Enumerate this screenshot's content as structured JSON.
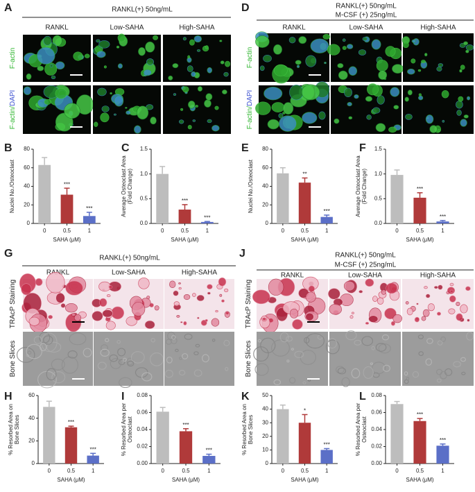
{
  "image_panels": [
    {
      "letter": "A",
      "header": [
        "RANKL(+) 50ng/mL"
      ],
      "columns": [
        "RANKL",
        "Low-SAHA",
        "High-SAHA"
      ],
      "rows": [
        [
          "F-actin"
        ],
        [
          "F-actin/",
          "DAPI"
        ]
      ]
    },
    {
      "letter": "D",
      "header": [
        "RANKL(+) 50ng/mL",
        "M-CSF (+) 25ng/mL"
      ],
      "columns": [
        "RANKL",
        "Low-SAHA",
        "High-SAHA"
      ],
      "rows": [
        [
          "F-actin"
        ],
        [
          "F-actin/",
          "DAPI"
        ]
      ]
    },
    {
      "letter": "G",
      "header": [
        "RANKL(+) 50ng/mL"
      ],
      "columns": [
        "RANKL",
        "Low-SAHA",
        "High-SAHA"
      ],
      "rows": [
        [
          "TRAcP Staining"
        ],
        [
          "Bone Slices"
        ]
      ]
    },
    {
      "letter": "J",
      "header": [
        "RANKL(+) 50ng/mL",
        "M-CSF (+) 25ng/mL"
      ],
      "columns": [
        "RANKL",
        "Low-SAHA",
        "High-SAHA"
      ],
      "rows": [
        [
          "TRAcP Staining"
        ],
        [
          "Bone Slices"
        ]
      ]
    }
  ],
  "chart_data": [
    {
      "type": "bar",
      "panel": "B",
      "ylabel": [
        "Nuclei No./Osteoclast"
      ],
      "xlabel": "SAHA (μM)",
      "categories": [
        "0",
        "0.5",
        "1"
      ],
      "values": [
        63,
        31,
        8
      ],
      "errors": [
        8,
        7,
        4
      ],
      "annotations": [
        null,
        "***",
        "***"
      ],
      "colors": [
        "#bdbdbd",
        "#b03a3a",
        "#5b6fc7"
      ],
      "ylim": [
        0,
        80
      ],
      "yticks": [
        0,
        20,
        40,
        60,
        80
      ]
    },
    {
      "type": "bar",
      "panel": "C",
      "ylabel": [
        "Average Osteoclast Area",
        "(Fold Change)"
      ],
      "xlabel": "SAHA (μM)",
      "categories": [
        "0",
        "0.5",
        "1"
      ],
      "values": [
        1.0,
        0.28,
        0.03
      ],
      "errors": [
        0.15,
        0.1,
        0.01
      ],
      "annotations": [
        null,
        "***",
        "***"
      ],
      "colors": [
        "#bdbdbd",
        "#b03a3a",
        "#5b6fc7"
      ],
      "ylim": [
        0,
        1.5
      ],
      "yticks": [
        {
          "value": 0,
          "label": "0.0"
        },
        0.5,
        {
          "value": 1,
          "label": "1.0"
        },
        1.5
      ]
    },
    {
      "type": "bar",
      "panel": "E",
      "ylabel": [
        "Nuclei No./Osteoclast"
      ],
      "xlabel": "SAHA (μM)",
      "categories": [
        "0",
        "0.5",
        "1"
      ],
      "values": [
        54,
        44,
        7
      ],
      "errors": [
        6,
        5,
        2
      ],
      "annotations": [
        null,
        "**",
        "***"
      ],
      "colors": [
        "#bdbdbd",
        "#b03a3a",
        "#5b6fc7"
      ],
      "ylim": [
        0,
        80
      ],
      "yticks": [
        0,
        20,
        40,
        60,
        80
      ]
    },
    {
      "type": "bar",
      "panel": "F",
      "ylabel": [
        "Average Osteoclast Area",
        "(Fold Change)"
      ],
      "xlabel": "SAHA (μM)",
      "categories": [
        "0",
        "0.5",
        "1"
      ],
      "values": [
        0.98,
        0.52,
        0.04
      ],
      "errors": [
        0.1,
        0.1,
        0.02
      ],
      "annotations": [
        null,
        "***",
        "***"
      ],
      "colors": [
        "#bdbdbd",
        "#b03a3a",
        "#5b6fc7"
      ],
      "ylim": [
        0,
        1.5
      ],
      "yticks": [
        {
          "value": 0,
          "label": "0.0"
        },
        0.5,
        {
          "value": 1,
          "label": "1.0"
        },
        1.5
      ]
    },
    {
      "type": "bar",
      "panel": "H",
      "ylabel": [
        "% Resorbed Area on",
        "Bone Slices"
      ],
      "xlabel": "SAHA (μM)",
      "categories": [
        "0",
        "0.5",
        "1"
      ],
      "values": [
        50,
        32,
        7
      ],
      "errors": [
        5,
        1,
        2
      ],
      "annotations": [
        null,
        "***",
        "***"
      ],
      "colors": [
        "#bdbdbd",
        "#b03a3a",
        "#5b6fc7"
      ],
      "ylim": [
        0,
        60
      ],
      "yticks": [
        0,
        20,
        40,
        60
      ]
    },
    {
      "type": "bar",
      "panel": "I",
      "ylabel": [
        "% Resorbed Area per",
        "Osteoclast"
      ],
      "xlabel": "SAHA (μM)",
      "categories": [
        "0",
        "0.5",
        "1"
      ],
      "values": [
        0.061,
        0.038,
        0.009
      ],
      "errors": [
        0.005,
        0.003,
        0.002
      ],
      "annotations": [
        null,
        "***",
        "***"
      ],
      "colors": [
        "#bdbdbd",
        "#b03a3a",
        "#5b6fc7"
      ],
      "ylim": [
        0,
        0.08
      ],
      "yticks": [
        {
          "value": 0,
          "label": "0.00"
        },
        0.02,
        0.04,
        0.06,
        0.08
      ]
    },
    {
      "type": "bar",
      "panel": "K",
      "ylabel": [
        "% Resorbed Area on",
        "Bone Slices"
      ],
      "xlabel": "SAHA (μM)",
      "categories": [
        "0",
        "0.5",
        "1"
      ],
      "values": [
        40,
        30,
        10
      ],
      "errors": [
        3,
        6,
        1
      ],
      "annotations": [
        null,
        "*",
        "***"
      ],
      "colors": [
        "#bdbdbd",
        "#b03a3a",
        "#5b6fc7"
      ],
      "ylim": [
        0,
        50
      ],
      "yticks": [
        0,
        10,
        20,
        30,
        40,
        50
      ]
    },
    {
      "type": "bar",
      "panel": "L",
      "ylabel": [
        "% Resorbed Area per",
        "Osteoclast"
      ],
      "xlabel": "SAHA (μM)",
      "categories": [
        "0",
        "0.5",
        "1"
      ],
      "values": [
        0.07,
        0.05,
        0.021
      ],
      "errors": [
        0.003,
        0.003,
        0.002
      ],
      "annotations": [
        null,
        "***",
        "***"
      ],
      "colors": [
        "#bdbdbd",
        "#b03a3a",
        "#5b6fc7"
      ],
      "ylim": [
        0,
        0.08
      ],
      "yticks": [
        {
          "value": 0,
          "label": "0.00"
        },
        0.02,
        0.04,
        0.06,
        0.08
      ]
    }
  ]
}
